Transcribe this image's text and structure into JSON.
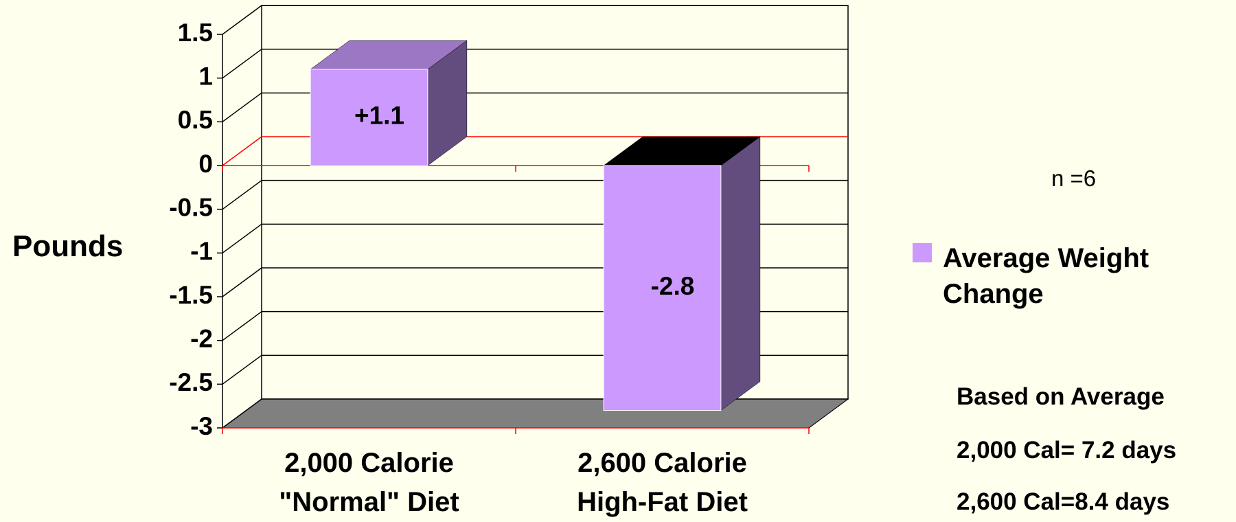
{
  "chart_data": {
    "type": "bar",
    "y_label": "Pounds",
    "categories": [
      "2,000 Calorie\n\"Normal\" Diet",
      "2,600 Calorie\nHigh-Fat Diet"
    ],
    "series": [
      {
        "name": "Average Weight Change",
        "color": "#cc99ff",
        "values": [
          1.1,
          -2.8
        ],
        "value_labels": [
          "+1.1",
          "-2.8"
        ]
      }
    ],
    "ylim": [
      -3,
      1.5
    ],
    "yticks": [
      1.5,
      1,
      0.5,
      0,
      -0.5,
      -1,
      -1.5,
      -2,
      -2.5,
      -3
    ],
    "grid": true,
    "zero_line_color": "#ff0000",
    "legend": "right",
    "annotations": [
      "n =6",
      "Based on Average",
      "2,000 Cal= 7.2 days",
      "2,600 Cal=8.4 days"
    ]
  }
}
